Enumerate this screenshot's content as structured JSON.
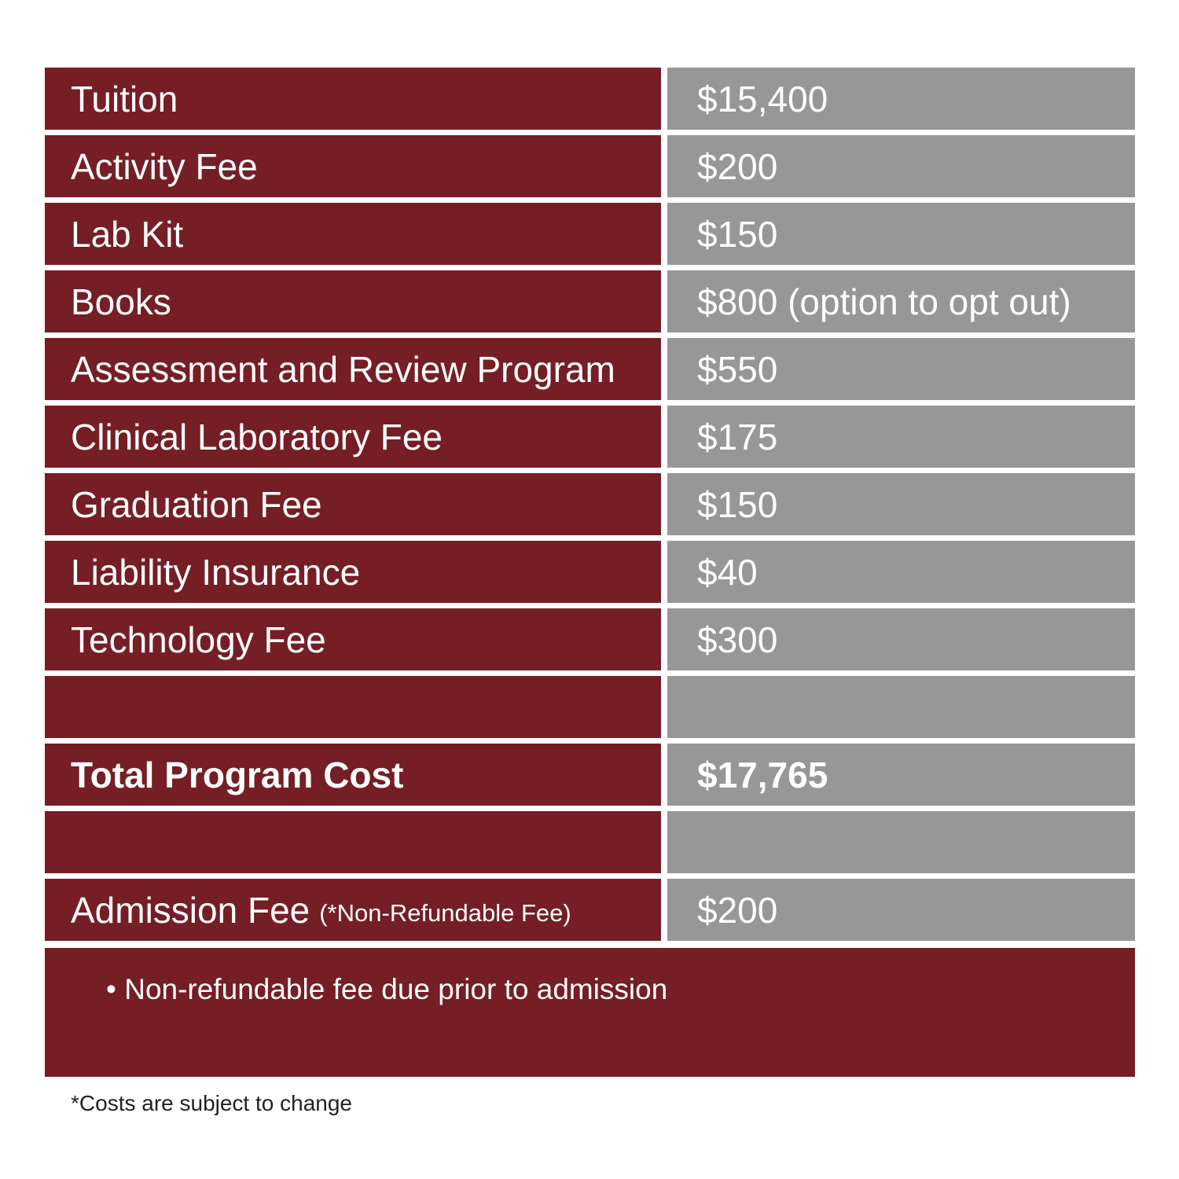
{
  "table": {
    "rows": [
      {
        "label": "Tuition",
        "value": "$15,400"
      },
      {
        "label": "Activity Fee",
        "value": "$200"
      },
      {
        "label": "Lab Kit",
        "value": "$150"
      },
      {
        "label": "Books",
        "value": "$800 (option to opt out)"
      },
      {
        "label": "Assessment and Review Program",
        "value": "$550"
      },
      {
        "label": "Clinical Laboratory Fee",
        "value": "$175"
      },
      {
        "label": "Graduation Fee",
        "value": "$150"
      },
      {
        "label": "Liability Insurance",
        "value": "$40"
      },
      {
        "label": "Technology Fee",
        "value": "$300"
      }
    ],
    "total": {
      "label": "Total Program Cost",
      "value": "$17,765"
    },
    "admission": {
      "label": "Admission Fee",
      "note": "(*Non-Refundable Fee)",
      "value": "$200"
    },
    "bullet": "Non-refundable fee due prior to admission"
  },
  "footnote": "*Costs are subject to change"
}
